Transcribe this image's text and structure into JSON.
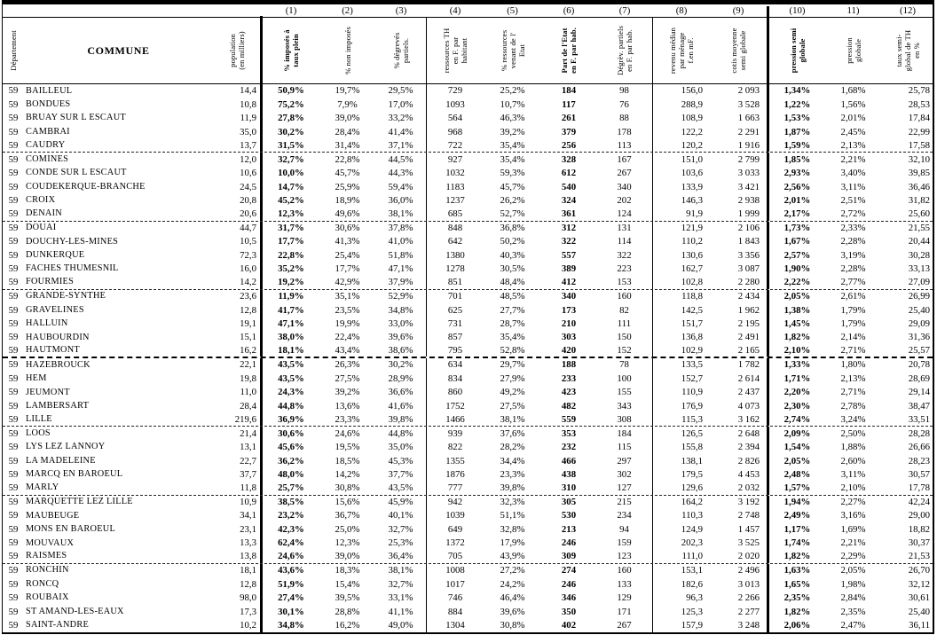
{
  "table": {
    "title_semantics": "Tableau statistique des communes du département 59 (taxe d'habitation)",
    "column_numbers": [
      "(1)",
      "(2)",
      "(3)",
      "(4)",
      "(5)",
      "(6)",
      "(7)",
      "(8)",
      "(9)",
      "(10)",
      "11)",
      "(12)"
    ],
    "headers": {
      "departement": "Département",
      "commune": "COMMUNE",
      "population": "population\n(en milliers)",
      "c1": "% imposés à\ntaux plein",
      "c2": "% non imposés",
      "c3": "% dégrevés\npartiels.",
      "c4": "ressources TH\nen F. par\nhabitant",
      "c5": "% ressources\nvenant de l'\nEtat",
      "c6": "Part de l'Etat\nen F. par hab.",
      "c7": "Dégrèv. partiels\nen F. par hab.",
      "c8": "revenu médian\npar ménage\nf.en mF.",
      "c9": "cotis moyenne\nsemi globale",
      "c10": "pression semi\nglobale",
      "c11": "pression\nglobale",
      "c12": "taux semi-\nglobal de TH\nen %"
    },
    "rows": [
      [
        "59",
        "BAILLEUL",
        "14,4",
        "50,9%",
        "19,7%",
        "29,5%",
        "729",
        "25,2%",
        "184",
        "98",
        "156,0",
        "2 093",
        "1,34%",
        "1,68%",
        "25,78"
      ],
      [
        "59",
        "BONDUES",
        "10,8",
        "75,2%",
        "7,9%",
        "17,0%",
        "1093",
        "10,7%",
        "117",
        "76",
        "288,9",
        "3 528",
        "1,22%",
        "1,56%",
        "28,53"
      ],
      [
        "59",
        "BRUAY SUR L ESCAUT",
        "11,9",
        "27,8%",
        "39,0%",
        "33,2%",
        "564",
        "46,3%",
        "261",
        "88",
        "108,9",
        "1 663",
        "1,53%",
        "2,01%",
        "17,84"
      ],
      [
        "59",
        "CAMBRAI",
        "35,0",
        "30,2%",
        "28,4%",
        "41,4%",
        "968",
        "39,2%",
        "379",
        "178",
        "122,2",
        "2 291",
        "1,87%",
        "2,45%",
        "22,99"
      ],
      [
        "59",
        "CAUDRY",
        "13,7",
        "31,5%",
        "31,4%",
        "37,1%",
        "722",
        "35,4%",
        "256",
        "113",
        "120,2",
        "1 916",
        "1,59%",
        "2,13%",
        "17,58"
      ],
      [
        "59",
        "COMINES",
        "12,0",
        "32,7%",
        "22,8%",
        "44,5%",
        "927",
        "35,4%",
        "328",
        "167",
        "151,0",
        "2 799",
        "1,85%",
        "2,21%",
        "32,10"
      ],
      [
        "59",
        "CONDE SUR L ESCAUT",
        "10,6",
        "10,0%",
        "45,7%",
        "44,3%",
        "1032",
        "59,3%",
        "612",
        "267",
        "103,6",
        "3 033",
        "2,93%",
        "3,40%",
        "39,85"
      ],
      [
        "59",
        "COUDEKERQUE-BRANCHE",
        "24,5",
        "14,7%",
        "25,9%",
        "59,4%",
        "1183",
        "45,7%",
        "540",
        "340",
        "133,9",
        "3 421",
        "2,56%",
        "3,11%",
        "36,46"
      ],
      [
        "59",
        "CROIX",
        "20,8",
        "45,2%",
        "18,9%",
        "36,0%",
        "1237",
        "26,2%",
        "324",
        "202",
        "146,3",
        "2 938",
        "2,01%",
        "2,51%",
        "31,82"
      ],
      [
        "59",
        "DENAIN",
        "20,6",
        "12,3%",
        "49,6%",
        "38,1%",
        "685",
        "52,7%",
        "361",
        "124",
        "91,9",
        "1 999",
        "2,17%",
        "2,72%",
        "25,60"
      ],
      [
        "59",
        "DOUAI",
        "44,7",
        "31,7%",
        "30,6%",
        "37,8%",
        "848",
        "36,8%",
        "312",
        "131",
        "121,9",
        "2 106",
        "1,73%",
        "2,33%",
        "21,55"
      ],
      [
        "59",
        "DOUCHY-LES-MINES",
        "10,5",
        "17,7%",
        "41,3%",
        "41,0%",
        "642",
        "50,2%",
        "322",
        "114",
        "110,2",
        "1 843",
        "1,67%",
        "2,28%",
        "20,44"
      ],
      [
        "59",
        "DUNKERQUE",
        "72,3",
        "22,8%",
        "25,4%",
        "51,8%",
        "1380",
        "40,3%",
        "557",
        "322",
        "130,6",
        "3 356",
        "2,57%",
        "3,19%",
        "30,28"
      ],
      [
        "59",
        "FACHES THUMESNIL",
        "16,0",
        "35,2%",
        "17,7%",
        "47,1%",
        "1278",
        "30,5%",
        "389",
        "223",
        "162,7",
        "3 087",
        "1,90%",
        "2,28%",
        "33,13"
      ],
      [
        "59",
        "FOURMIES",
        "14,2",
        "19,2%",
        "42,9%",
        "37,9%",
        "851",
        "48,4%",
        "412",
        "153",
        "102,8",
        "2 280",
        "2,22%",
        "2,77%",
        "27,09"
      ],
      [
        "59",
        "GRANDE-SYNTHE",
        "23,6",
        "11,9%",
        "35,1%",
        "52,9%",
        "701",
        "48,5%",
        "340",
        "160",
        "118,8",
        "2 434",
        "2,05%",
        "2,61%",
        "26,99"
      ],
      [
        "59",
        "GRAVELINES",
        "12,8",
        "41,7%",
        "23,5%",
        "34,8%",
        "625",
        "27,7%",
        "173",
        "82",
        "142,5",
        "1 962",
        "1,38%",
        "1,79%",
        "25,40"
      ],
      [
        "59",
        "HALLUIN",
        "19,1",
        "47,1%",
        "19,9%",
        "33,0%",
        "731",
        "28,7%",
        "210",
        "111",
        "151,7",
        "2 195",
        "1,45%",
        "1,79%",
        "29,09"
      ],
      [
        "59",
        "HAUBOURDIN",
        "15,1",
        "38,0%",
        "22,4%",
        "39,6%",
        "857",
        "35,4%",
        "303",
        "150",
        "136,8",
        "2 491",
        "1,82%",
        "2,14%",
        "31,36"
      ],
      [
        "59",
        "HAUTMONT",
        "16,2",
        "18,1%",
        "43,4%",
        "38,6%",
        "795",
        "52,8%",
        "420",
        "152",
        "102,9",
        "2 165",
        "2,10%",
        "2,71%",
        "25,57"
      ],
      [
        "59",
        "HAZEBROUCK",
        "22,1",
        "43,5%",
        "26,3%",
        "30,2%",
        "634",
        "29,7%",
        "188",
        "78",
        "133,5",
        "1 782",
        "1,33%",
        "1,80%",
        "20,78"
      ],
      [
        "59",
        "HEM",
        "19,8",
        "43,5%",
        "27,5%",
        "28,9%",
        "834",
        "27,9%",
        "233",
        "100",
        "152,7",
        "2 614",
        "1,71%",
        "2,13%",
        "28,69"
      ],
      [
        "59",
        "JEUMONT",
        "11,0",
        "24,3%",
        "39,2%",
        "36,6%",
        "860",
        "49,2%",
        "423",
        "155",
        "110,9",
        "2 437",
        "2,20%",
        "2,71%",
        "29,14"
      ],
      [
        "59",
        "LAMBERSART",
        "28,4",
        "44,8%",
        "13,6%",
        "41,6%",
        "1752",
        "27,5%",
        "482",
        "343",
        "176,9",
        "4 073",
        "2,30%",
        "2,78%",
        "38,47"
      ],
      [
        "59",
        "LILLE",
        "219,6",
        "36,9%",
        "23,3%",
        "39,8%",
        "1466",
        "38,1%",
        "559",
        "308",
        "115,3",
        "3 162",
        "2,74%",
        "3,24%",
        "33,51"
      ],
      [
        "59",
        "LOOS",
        "21,4",
        "30,6%",
        "24,6%",
        "44,8%",
        "939",
        "37,6%",
        "353",
        "184",
        "126,5",
        "2 648",
        "2,09%",
        "2,50%",
        "28,28"
      ],
      [
        "59",
        "LYS LEZ LANNOY",
        "13,1",
        "45,6%",
        "19,5%",
        "35,0%",
        "822",
        "28,2%",
        "232",
        "115",
        "155,8",
        "2 394",
        "1,54%",
        "1,88%",
        "26,66"
      ],
      [
        "59",
        "LA MADELEINE",
        "22,7",
        "36,2%",
        "18,5%",
        "45,3%",
        "1355",
        "34,4%",
        "466",
        "297",
        "138,1",
        "2 826",
        "2,05%",
        "2,60%",
        "28,23"
      ],
      [
        "59",
        "MARCQ EN BAROEUL",
        "37,7",
        "48,0%",
        "14,2%",
        "37,7%",
        "1876",
        "23,3%",
        "438",
        "302",
        "179,5",
        "4 453",
        "2,48%",
        "3,11%",
        "30,57"
      ],
      [
        "59",
        "MARLY",
        "11,8",
        "25,7%",
        "30,8%",
        "43,5%",
        "777",
        "39,8%",
        "310",
        "127",
        "129,6",
        "2 032",
        "1,57%",
        "2,10%",
        "17,78"
      ],
      [
        "59",
        "MARQUETTE LEZ LILLE",
        "10,9",
        "38,5%",
        "15,6%",
        "45,9%",
        "942",
        "32,3%",
        "305",
        "215",
        "164,2",
        "3 192",
        "1,94%",
        "2,27%",
        "42,24"
      ],
      [
        "59",
        "MAUBEUGE",
        "34,1",
        "23,2%",
        "36,7%",
        "40,1%",
        "1039",
        "51,1%",
        "530",
        "234",
        "110,3",
        "2 748",
        "2,49%",
        "3,16%",
        "29,00"
      ],
      [
        "59",
        "MONS EN BAROEUL",
        "23,1",
        "42,3%",
        "25,0%",
        "32,7%",
        "649",
        "32,8%",
        "213",
        "94",
        "124,9",
        "1 457",
        "1,17%",
        "1,69%",
        "18,82"
      ],
      [
        "59",
        "MOUVAUX",
        "13,3",
        "62,4%",
        "12,3%",
        "25,3%",
        "1372",
        "17,9%",
        "246",
        "159",
        "202,3",
        "3 525",
        "1,74%",
        "2,21%",
        "30,37"
      ],
      [
        "59",
        "RAISMES",
        "13,8",
        "24,6%",
        "39,0%",
        "36,4%",
        "705",
        "43,9%",
        "309",
        "123",
        "111,0",
        "2 020",
        "1,82%",
        "2,29%",
        "21,53"
      ],
      [
        "59",
        "RONCHIN",
        "18,1",
        "43,6%",
        "18,3%",
        "38,1%",
        "1008",
        "27,2%",
        "274",
        "160",
        "153,1",
        "2 496",
        "1,63%",
        "2,05%",
        "26,70"
      ],
      [
        "59",
        "RONCQ",
        "12,8",
        "51,9%",
        "15,4%",
        "32,7%",
        "1017",
        "24,2%",
        "246",
        "133",
        "182,6",
        "3 013",
        "1,65%",
        "1,98%",
        "32,12"
      ],
      [
        "59",
        "ROUBAIX",
        "98,0",
        "27,4%",
        "39,5%",
        "33,1%",
        "746",
        "46,4%",
        "346",
        "129",
        "96,3",
        "2 266",
        "2,35%",
        "2,84%",
        "30,61"
      ],
      [
        "59",
        "ST AMAND-LES-EAUX",
        "17,3",
        "30,1%",
        "28,8%",
        "41,1%",
        "884",
        "39,6%",
        "350",
        "171",
        "125,3",
        "2 277",
        "1,82%",
        "2,35%",
        "25,40"
      ],
      [
        "59",
        "SAINT-ANDRE",
        "10,2",
        "34,8%",
        "16,2%",
        "49,0%",
        "1304",
        "30,8%",
        "402",
        "267",
        "157,9",
        "3 248",
        "2,06%",
        "2,47%",
        "36,11"
      ]
    ],
    "group_separators": {
      "dashed_after_rows": [
        5,
        10,
        15,
        25,
        30,
        35
      ],
      "heavy_dashed_after_rows": [
        20
      ]
    }
  }
}
